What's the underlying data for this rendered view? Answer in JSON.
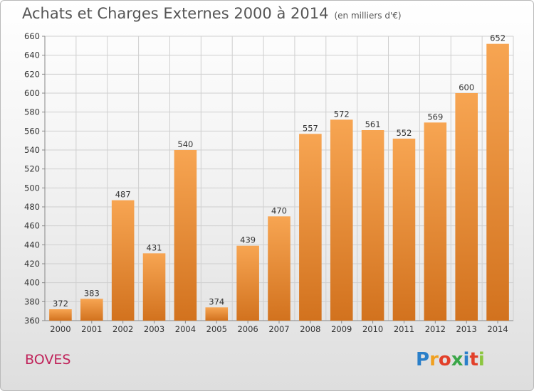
{
  "header": {
    "title": "Achats et Charges Externes 2000 à 2014",
    "subtitle": "(en milliers d'€)"
  },
  "footer": {
    "city": "BOVES",
    "logo_text": "Proxiti"
  },
  "colors": {
    "bar_top": "#f7a552",
    "bar_bottom": "#d2721e",
    "grid": "#cfcfcf",
    "title": "#555555",
    "city": "#c0235a"
  },
  "chart_data": {
    "type": "bar",
    "title": "Achats et Charges Externes 2000 à 2014",
    "subtitle": "(en milliers d'€)",
    "xlabel": "",
    "ylabel": "",
    "categories": [
      "2000",
      "2001",
      "2002",
      "2003",
      "2004",
      "2005",
      "2006",
      "2007",
      "2008",
      "2009",
      "2010",
      "2011",
      "2012",
      "2013",
      "2014"
    ],
    "values": [
      372,
      383,
      487,
      431,
      540,
      374,
      439,
      470,
      557,
      572,
      561,
      552,
      569,
      600,
      652
    ],
    "ylim": [
      360,
      660
    ],
    "yticks": [
      360,
      380,
      400,
      420,
      440,
      460,
      480,
      500,
      520,
      540,
      560,
      580,
      600,
      620,
      640,
      660
    ],
    "grid": true,
    "legend": "none",
    "data_labels": true
  }
}
